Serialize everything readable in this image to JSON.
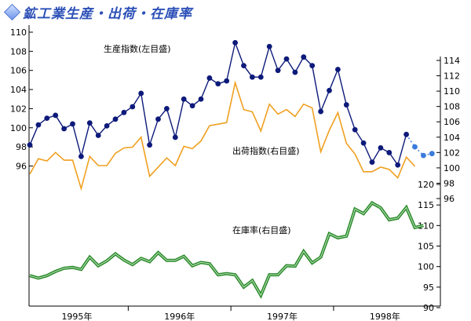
{
  "title": "鉱工業生産・出荷・在庫率",
  "colors": {
    "production": "#0d1a7a",
    "shipment": "#f0a020",
    "inventory": "#2b8a2b",
    "forecast": "#3a7bdc",
    "title": "#2b4fb7"
  },
  "chart_data": [
    {
      "type": "line",
      "panel": "top",
      "categories_label": [
        "1995年",
        "1996年",
        "1997年",
        "1998年"
      ],
      "x_start": "1995-01",
      "series": [
        {
          "name": "生産指数(左目盛)",
          "axis": "left",
          "values": [
            98.2,
            100.3,
            101.0,
            101.3,
            99.9,
            100.4,
            97.0,
            100.5,
            99.2,
            100.2,
            100.9,
            101.6,
            102.2,
            103.6,
            98.2,
            100.9,
            102.0,
            99.0,
            103.0,
            102.3,
            103.0,
            105.2,
            104.6,
            104.9,
            108.9,
            106.5,
            105.3,
            105.3,
            108.5,
            106.0,
            107.2,
            105.8,
            107.4,
            106.5,
            101.7,
            103.9,
            106.1,
            102.4,
            99.8,
            98.4,
            96.4,
            97.9,
            97.4,
            96.1,
            99.3
          ],
          "forecast": [
            98.0,
            97.1,
            97.3
          ]
        },
        {
          "name": "出荷指数(右目盛)",
          "axis": "right",
          "values": [
            99.2,
            101.2,
            100.9,
            102.0,
            101.0,
            101.0,
            97.3,
            101.5,
            100.3,
            100.3,
            101.9,
            102.6,
            102.7,
            104.0,
            98.9,
            100.1,
            101.3,
            100.3,
            102.8,
            102.5,
            103.5,
            105.5,
            105.7,
            105.9,
            111.1,
            107.6,
            107.3,
            104.8,
            108.3,
            107.0,
            107.6,
            106.7,
            108.3,
            107.8,
            102.1,
            104.9,
            107.2,
            103.2,
            101.8,
            99.5,
            99.5,
            100.1,
            99.8,
            98.7,
            101.4,
            100.2
          ]
        }
      ],
      "y_left": {
        "ticks": [
          96,
          98,
          100,
          102,
          104,
          106,
          108,
          110
        ],
        "range": [
          95.5,
          110
        ]
      },
      "y_right": {
        "ticks": [
          96,
          98,
          100,
          102,
          104,
          106,
          108,
          110,
          112,
          114
        ],
        "range": [
          95.5,
          115
        ]
      }
    },
    {
      "type": "line",
      "panel": "bottom",
      "x_start": "1995-01",
      "series": [
        {
          "name": "在庫率(右目盛)",
          "axis": "right",
          "values": [
            97.8,
            97.2,
            97.8,
            98.8,
            99.6,
            99.8,
            99.3,
            102.3,
            100.2,
            101.4,
            103.1,
            101.6,
            100.5,
            102.0,
            101.2,
            103.4,
            101.5,
            101.5,
            102.5,
            100.2,
            101.0,
            100.7,
            98.0,
            98.3,
            98.0,
            95.0,
            96.6,
            93.0,
            98.0,
            98.0,
            100.2,
            100.1,
            103.7,
            100.9,
            102.3,
            108.0,
            107.0,
            107.4,
            114.0,
            112.9,
            115.5,
            114.3,
            111.4,
            111.8,
            114.4,
            109.5,
            110.0
          ]
        }
      ],
      "y_right": {
        "ticks": [
          90,
          95,
          100,
          105,
          110,
          115,
          120
        ],
        "range": [
          90,
          120
        ]
      }
    }
  ],
  "annotations": {
    "production": "生産指数(左目盛)",
    "shipment": "出荷指数(右目盛)",
    "inventory": "在庫率(右目盛)"
  }
}
